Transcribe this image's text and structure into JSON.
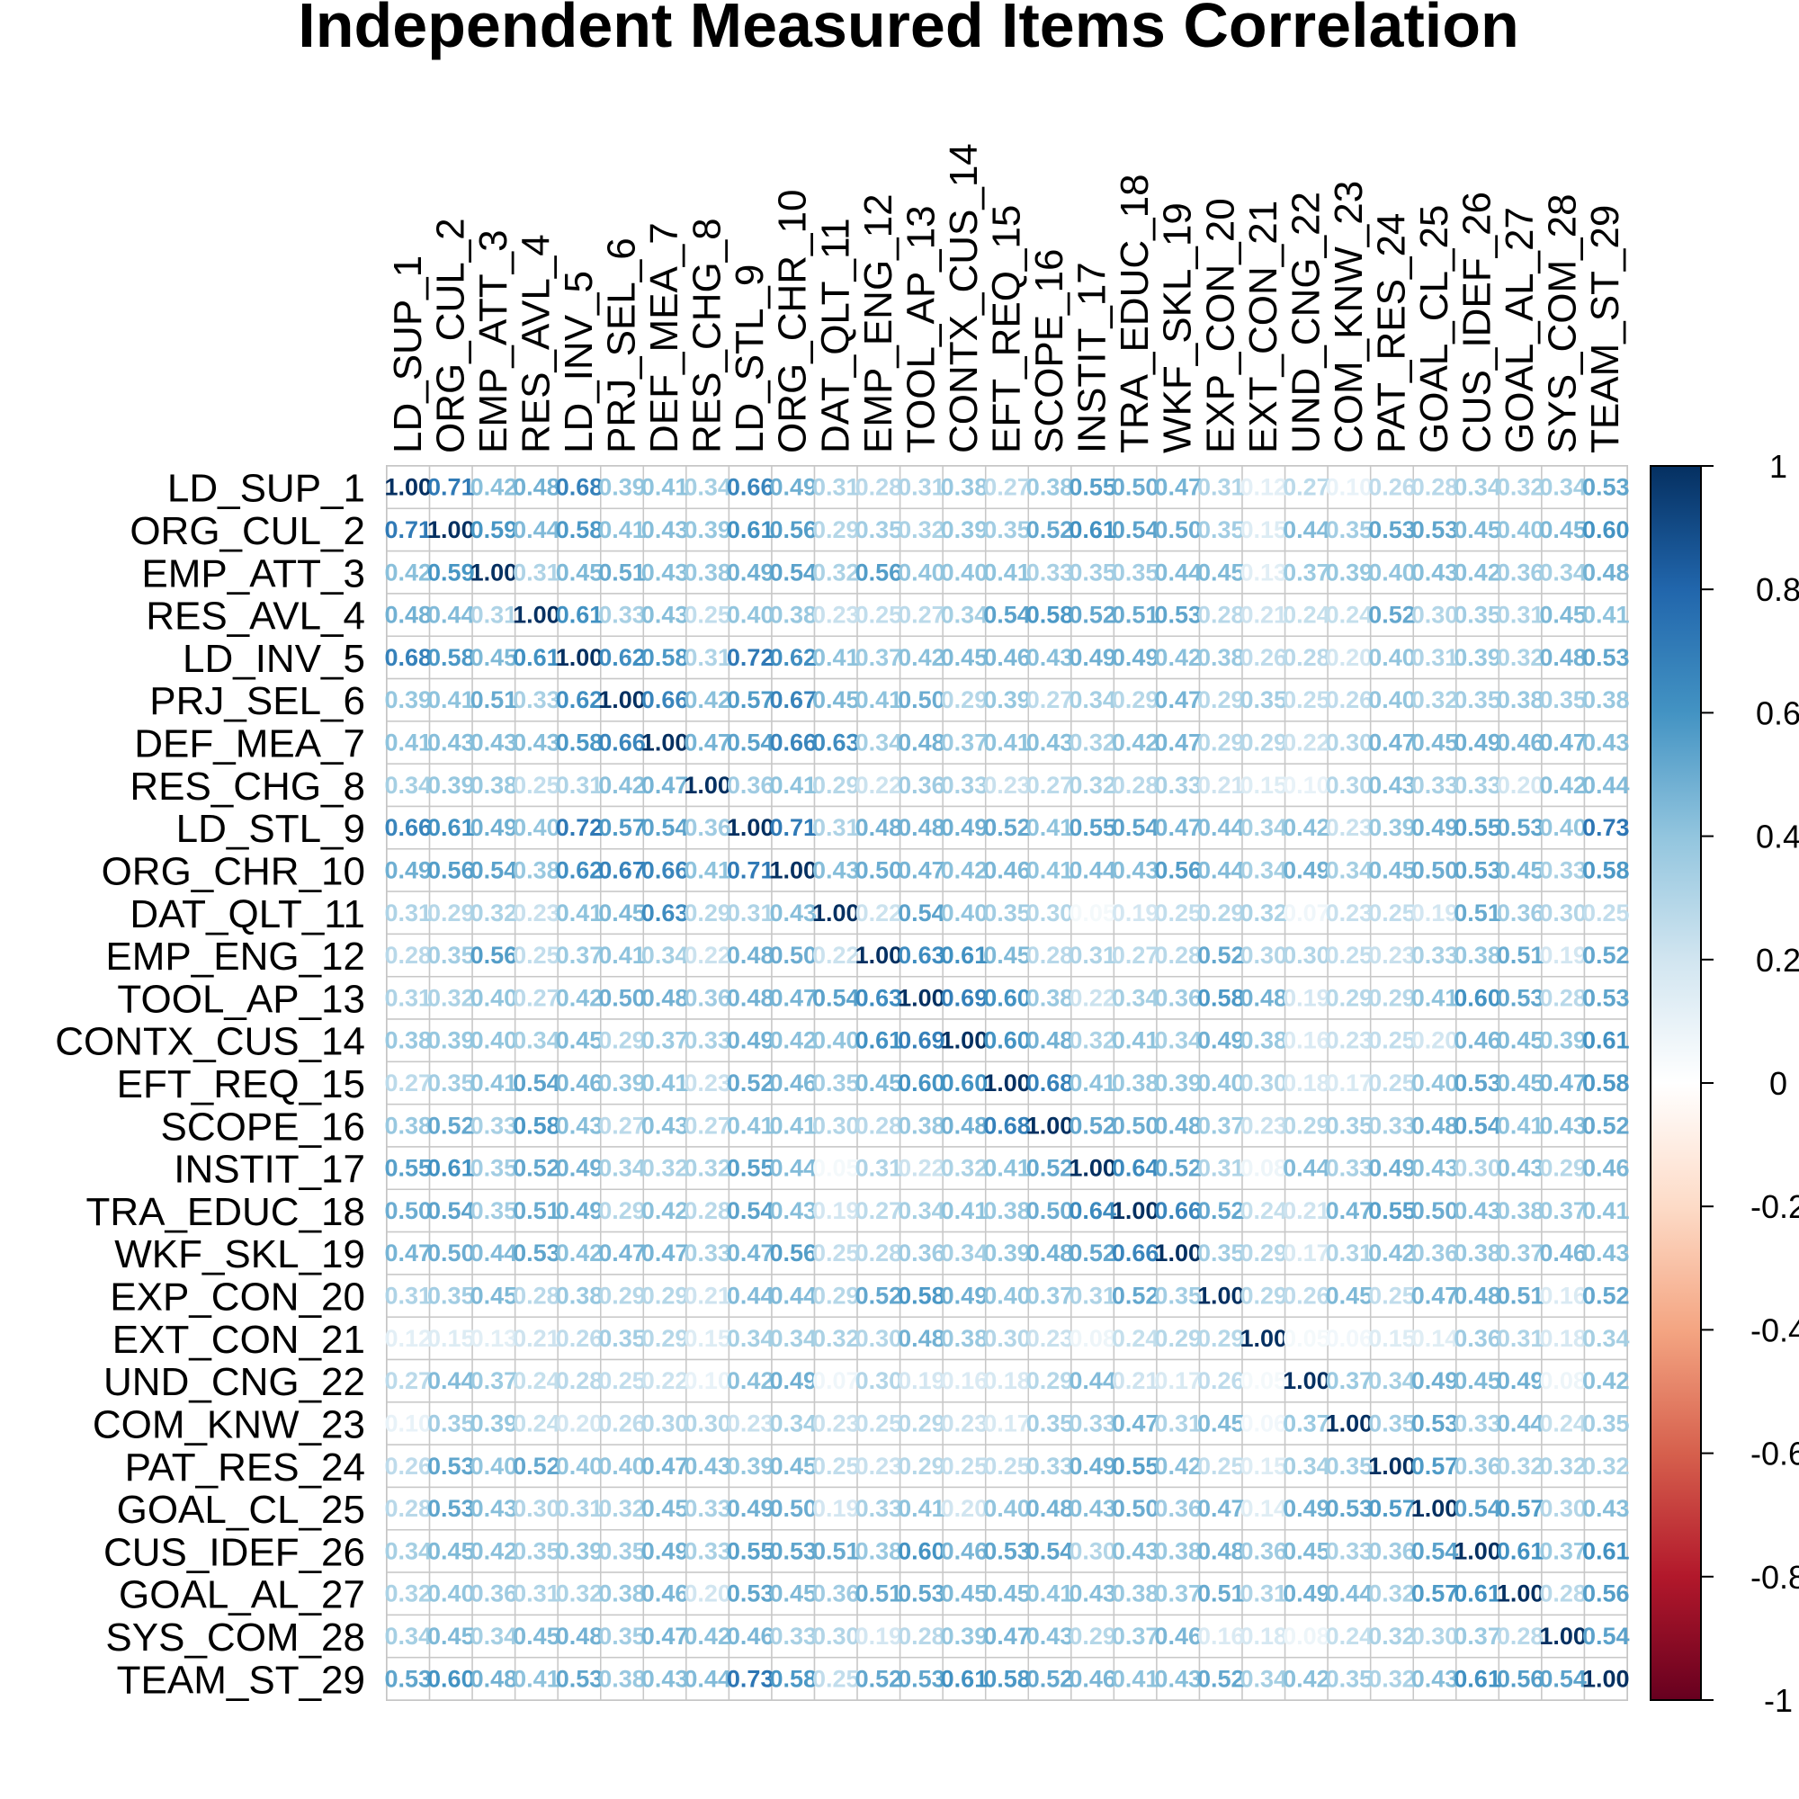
{
  "chart_data": {
    "type": "heatmap",
    "title": "Independent Measured Items Correlation",
    "variables": [
      "LD_SUP_1",
      "ORG_CUL_2",
      "EMP_ATT_3",
      "RES_AVL_4",
      "LD_INV_5",
      "PRJ_SEL_6",
      "DEF_MEA_7",
      "RES_CHG_8",
      "LD_STL_9",
      "ORG_CHR_10",
      "DAT_QLT_11",
      "EMP_ENG_12",
      "TOOL_AP_13",
      "CONTX_CUS_14",
      "EFT_REQ_15",
      "SCOPE_16",
      "INSTIT_17",
      "TRA_EDUC_18",
      "WKF_SKL_19",
      "EXP_CON_20",
      "EXT_CON_21",
      "UND_CNG_22",
      "COM_KNW_23",
      "PAT_RES_24",
      "GOAL_CL_25",
      "CUS_IDEF_26",
      "GOAL_AL_27",
      "SYS_COM_28",
      "TEAM_ST_29"
    ],
    "matrix": [
      [
        1.0,
        0.71,
        0.42,
        0.48,
        0.68,
        0.39,
        0.41,
        0.34,
        0.66,
        0.49,
        0.31,
        0.28,
        0.31,
        0.38,
        0.27,
        0.38,
        0.55,
        0.5,
        0.47,
        0.31,
        0.12,
        0.27,
        0.1,
        0.26,
        0.28,
        0.34,
        0.32,
        0.34,
        0.53
      ],
      [
        0.71,
        1.0,
        0.59,
        0.44,
        0.58,
        0.41,
        0.43,
        0.39,
        0.61,
        0.56,
        0.29,
        0.35,
        0.32,
        0.39,
        0.35,
        0.52,
        0.61,
        0.54,
        0.5,
        0.35,
        0.15,
        0.44,
        0.35,
        0.53,
        0.53,
        0.45,
        0.4,
        0.45,
        0.6
      ],
      [
        0.42,
        0.59,
        1.0,
        0.31,
        0.45,
        0.51,
        0.43,
        0.38,
        0.49,
        0.54,
        0.32,
        0.56,
        0.4,
        0.4,
        0.41,
        0.33,
        0.35,
        0.35,
        0.44,
        0.45,
        0.13,
        0.37,
        0.39,
        0.4,
        0.43,
        0.42,
        0.36,
        0.34,
        0.48
      ],
      [
        0.48,
        0.44,
        0.31,
        1.0,
        0.61,
        0.33,
        0.43,
        0.25,
        0.4,
        0.38,
        0.23,
        0.25,
        0.27,
        0.34,
        0.54,
        0.58,
        0.52,
        0.51,
        0.53,
        0.28,
        0.21,
        0.24,
        0.24,
        0.52,
        0.3,
        0.35,
        0.31,
        0.45,
        0.41
      ],
      [
        0.68,
        0.58,
        0.45,
        0.61,
        1.0,
        0.62,
        0.58,
        0.31,
        0.72,
        0.62,
        0.41,
        0.37,
        0.42,
        0.45,
        0.46,
        0.43,
        0.49,
        0.49,
        0.42,
        0.38,
        0.26,
        0.28,
        0.2,
        0.4,
        0.31,
        0.39,
        0.32,
        0.48,
        0.53
      ],
      [
        0.39,
        0.41,
        0.51,
        0.33,
        0.62,
        1.0,
        0.66,
        0.42,
        0.57,
        0.67,
        0.45,
        0.41,
        0.5,
        0.29,
        0.39,
        0.27,
        0.34,
        0.29,
        0.47,
        0.29,
        0.35,
        0.25,
        0.26,
        0.4,
        0.32,
        0.35,
        0.38,
        0.35,
        0.38
      ],
      [
        0.41,
        0.43,
        0.43,
        0.43,
        0.58,
        0.66,
        1.0,
        0.47,
        0.54,
        0.66,
        0.63,
        0.34,
        0.48,
        0.37,
        0.41,
        0.43,
        0.32,
        0.42,
        0.47,
        0.29,
        0.29,
        0.22,
        0.3,
        0.47,
        0.45,
        0.49,
        0.46,
        0.47,
        0.43
      ],
      [
        0.34,
        0.39,
        0.38,
        0.25,
        0.31,
        0.42,
        0.47,
        1.0,
        0.36,
        0.41,
        0.29,
        0.22,
        0.36,
        0.33,
        0.23,
        0.27,
        0.32,
        0.28,
        0.33,
        0.21,
        0.15,
        0.1,
        0.3,
        0.43,
        0.33,
        0.33,
        0.2,
        0.42,
        0.44
      ],
      [
        0.66,
        0.61,
        0.49,
        0.4,
        0.72,
        0.57,
        0.54,
        0.36,
        1.0,
        0.71,
        0.31,
        0.48,
        0.48,
        0.49,
        0.52,
        0.41,
        0.55,
        0.54,
        0.47,
        0.44,
        0.34,
        0.42,
        0.23,
        0.39,
        0.49,
        0.55,
        0.53,
        0.4,
        0.73
      ],
      [
        0.49,
        0.56,
        0.54,
        0.38,
        0.62,
        0.67,
        0.66,
        0.41,
        0.71,
        1.0,
        0.43,
        0.5,
        0.47,
        0.42,
        0.46,
        0.41,
        0.44,
        0.43,
        0.56,
        0.44,
        0.34,
        0.49,
        0.34,
        0.45,
        0.5,
        0.53,
        0.45,
        0.33,
        0.58
      ],
      [
        0.31,
        0.29,
        0.32,
        0.23,
        0.41,
        0.45,
        0.63,
        0.29,
        0.31,
        0.43,
        1.0,
        0.22,
        0.54,
        0.4,
        0.35,
        0.3,
        0.05,
        0.19,
        0.25,
        0.29,
        0.32,
        0.07,
        0.23,
        0.25,
        0.19,
        0.51,
        0.36,
        0.3,
        0.25
      ],
      [
        0.28,
        0.35,
        0.56,
        0.25,
        0.37,
        0.41,
        0.34,
        0.22,
        0.48,
        0.5,
        0.22,
        1.0,
        0.63,
        0.61,
        0.45,
        0.28,
        0.31,
        0.27,
        0.28,
        0.52,
        0.3,
        0.3,
        0.25,
        0.23,
        0.33,
        0.38,
        0.51,
        0.19,
        0.52
      ],
      [
        0.31,
        0.32,
        0.4,
        0.27,
        0.42,
        0.5,
        0.48,
        0.36,
        0.48,
        0.47,
        0.54,
        0.63,
        1.0,
        0.69,
        0.6,
        0.38,
        0.22,
        0.34,
        0.36,
        0.58,
        0.48,
        0.19,
        0.29,
        0.29,
        0.41,
        0.6,
        0.53,
        0.28,
        0.53
      ],
      [
        0.38,
        0.39,
        0.4,
        0.34,
        0.45,
        0.29,
        0.37,
        0.33,
        0.49,
        0.42,
        0.4,
        0.61,
        0.69,
        1.0,
        0.6,
        0.48,
        0.32,
        0.41,
        0.34,
        0.49,
        0.38,
        0.16,
        0.23,
        0.25,
        0.2,
        0.46,
        0.45,
        0.39,
        0.61
      ],
      [
        0.27,
        0.35,
        0.41,
        0.54,
        0.46,
        0.39,
        0.41,
        0.23,
        0.52,
        0.46,
        0.35,
        0.45,
        0.6,
        0.6,
        1.0,
        0.68,
        0.41,
        0.38,
        0.39,
        0.4,
        0.3,
        0.18,
        0.17,
        0.25,
        0.4,
        0.53,
        0.45,
        0.47,
        0.58
      ],
      [
        0.38,
        0.52,
        0.33,
        0.58,
        0.43,
        0.27,
        0.43,
        0.27,
        0.41,
        0.41,
        0.3,
        0.28,
        0.38,
        0.48,
        0.68,
        1.0,
        0.52,
        0.5,
        0.48,
        0.37,
        0.23,
        0.29,
        0.35,
        0.33,
        0.48,
        0.54,
        0.41,
        0.43,
        0.52
      ],
      [
        0.55,
        0.61,
        0.35,
        0.52,
        0.49,
        0.34,
        0.32,
        0.32,
        0.55,
        0.44,
        0.05,
        0.31,
        0.22,
        0.32,
        0.41,
        0.52,
        1.0,
        0.64,
        0.52,
        0.31,
        0.08,
        0.44,
        0.33,
        0.49,
        0.43,
        0.3,
        0.43,
        0.29,
        0.46
      ],
      [
        0.5,
        0.54,
        0.35,
        0.51,
        0.49,
        0.29,
        0.42,
        0.28,
        0.54,
        0.43,
        0.19,
        0.27,
        0.34,
        0.41,
        0.38,
        0.5,
        0.64,
        1.0,
        0.66,
        0.52,
        0.24,
        0.21,
        0.47,
        0.55,
        0.5,
        0.43,
        0.38,
        0.37,
        0.41
      ],
      [
        0.47,
        0.5,
        0.44,
        0.53,
        0.42,
        0.47,
        0.47,
        0.33,
        0.47,
        0.56,
        0.25,
        0.28,
        0.36,
        0.34,
        0.39,
        0.48,
        0.52,
        0.66,
        1.0,
        0.35,
        0.29,
        0.17,
        0.31,
        0.42,
        0.36,
        0.38,
        0.37,
        0.46,
        0.43
      ],
      [
        0.31,
        0.35,
        0.45,
        0.28,
        0.38,
        0.29,
        0.29,
        0.21,
        0.44,
        0.44,
        0.29,
        0.52,
        0.58,
        0.49,
        0.4,
        0.37,
        0.31,
        0.52,
        0.35,
        1.0,
        0.29,
        0.26,
        0.45,
        0.25,
        0.47,
        0.48,
        0.51,
        0.16,
        0.52
      ],
      [
        0.12,
        0.15,
        0.13,
        0.21,
        0.26,
        0.35,
        0.29,
        0.15,
        0.34,
        0.34,
        0.32,
        0.3,
        0.48,
        0.38,
        0.3,
        0.23,
        0.08,
        0.24,
        0.29,
        0.29,
        1.0,
        0.05,
        0.06,
        0.15,
        0.14,
        0.36,
        0.31,
        0.18,
        0.34
      ],
      [
        0.27,
        0.44,
        0.37,
        0.24,
        0.28,
        0.25,
        0.22,
        0.1,
        0.42,
        0.49,
        0.07,
        0.3,
        0.19,
        0.16,
        0.18,
        0.29,
        0.44,
        0.21,
        0.17,
        0.26,
        0.05,
        1.0,
        0.37,
        0.34,
        0.49,
        0.45,
        0.49,
        0.08,
        0.42
      ],
      [
        0.1,
        0.35,
        0.39,
        0.24,
        0.2,
        0.26,
        0.3,
        0.3,
        0.23,
        0.34,
        0.23,
        0.25,
        0.29,
        0.23,
        0.17,
        0.35,
        0.33,
        0.47,
        0.31,
        0.45,
        0.06,
        0.37,
        1.0,
        0.35,
        0.53,
        0.33,
        0.44,
        0.24,
        0.35
      ],
      [
        0.26,
        0.53,
        0.4,
        0.52,
        0.4,
        0.4,
        0.47,
        0.43,
        0.39,
        0.45,
        0.25,
        0.23,
        0.29,
        0.25,
        0.25,
        0.33,
        0.49,
        0.55,
        0.42,
        0.25,
        0.15,
        0.34,
        0.35,
        1.0,
        0.57,
        0.36,
        0.32,
        0.32,
        0.32
      ],
      [
        0.28,
        0.53,
        0.43,
        0.3,
        0.31,
        0.32,
        0.45,
        0.33,
        0.49,
        0.5,
        0.19,
        0.33,
        0.41,
        0.2,
        0.4,
        0.48,
        0.43,
        0.5,
        0.36,
        0.47,
        0.14,
        0.49,
        0.53,
        0.57,
        1.0,
        0.54,
        0.57,
        0.3,
        0.43
      ],
      [
        0.34,
        0.45,
        0.42,
        0.35,
        0.39,
        0.35,
        0.49,
        0.33,
        0.55,
        0.53,
        0.51,
        0.38,
        0.6,
        0.46,
        0.53,
        0.54,
        0.3,
        0.43,
        0.38,
        0.48,
        0.36,
        0.45,
        0.33,
        0.36,
        0.54,
        1.0,
        0.61,
        0.37,
        0.61
      ],
      [
        0.32,
        0.4,
        0.36,
        0.31,
        0.32,
        0.38,
        0.46,
        0.2,
        0.53,
        0.45,
        0.36,
        0.51,
        0.53,
        0.45,
        0.45,
        0.41,
        0.43,
        0.38,
        0.37,
        0.51,
        0.31,
        0.49,
        0.44,
        0.32,
        0.57,
        0.61,
        1.0,
        0.28,
        0.56
      ],
      [
        0.34,
        0.45,
        0.34,
        0.45,
        0.48,
        0.35,
        0.47,
        0.42,
        0.46,
        0.33,
        0.3,
        0.19,
        0.28,
        0.39,
        0.47,
        0.43,
        0.29,
        0.37,
        0.46,
        0.16,
        0.18,
        0.08,
        0.24,
        0.32,
        0.3,
        0.37,
        0.28,
        1.0,
        0.54
      ],
      [
        0.53,
        0.6,
        0.48,
        0.41,
        0.53,
        0.38,
        0.43,
        0.44,
        0.73,
        0.58,
        0.25,
        0.52,
        0.53,
        0.61,
        0.58,
        0.52,
        0.46,
        0.41,
        0.43,
        0.52,
        0.34,
        0.42,
        0.35,
        0.32,
        0.43,
        0.61,
        0.56,
        0.54,
        1.0
      ]
    ],
    "colorbar": {
      "range": [
        -1,
        1
      ],
      "tick_labels": [
        "1",
        "0.8",
        "0.6",
        "0.4",
        "0.2",
        "0",
        "-0.2",
        "-0.4",
        "-0.6",
        "-0.8",
        "-1"
      ],
      "tick_values": [
        1,
        0.8,
        0.6,
        0.4,
        0.2,
        0,
        -0.2,
        -0.4,
        -0.6,
        -0.8,
        -1
      ],
      "palette": [
        "#67001F",
        "#B2182B",
        "#D6604D",
        "#F4A582",
        "#FDDBC7",
        "#FFFFFF",
        "#D1E5F0",
        "#92C5DE",
        "#4393C3",
        "#2166AC",
        "#053061"
      ]
    },
    "grid": true,
    "legend": "right"
  }
}
